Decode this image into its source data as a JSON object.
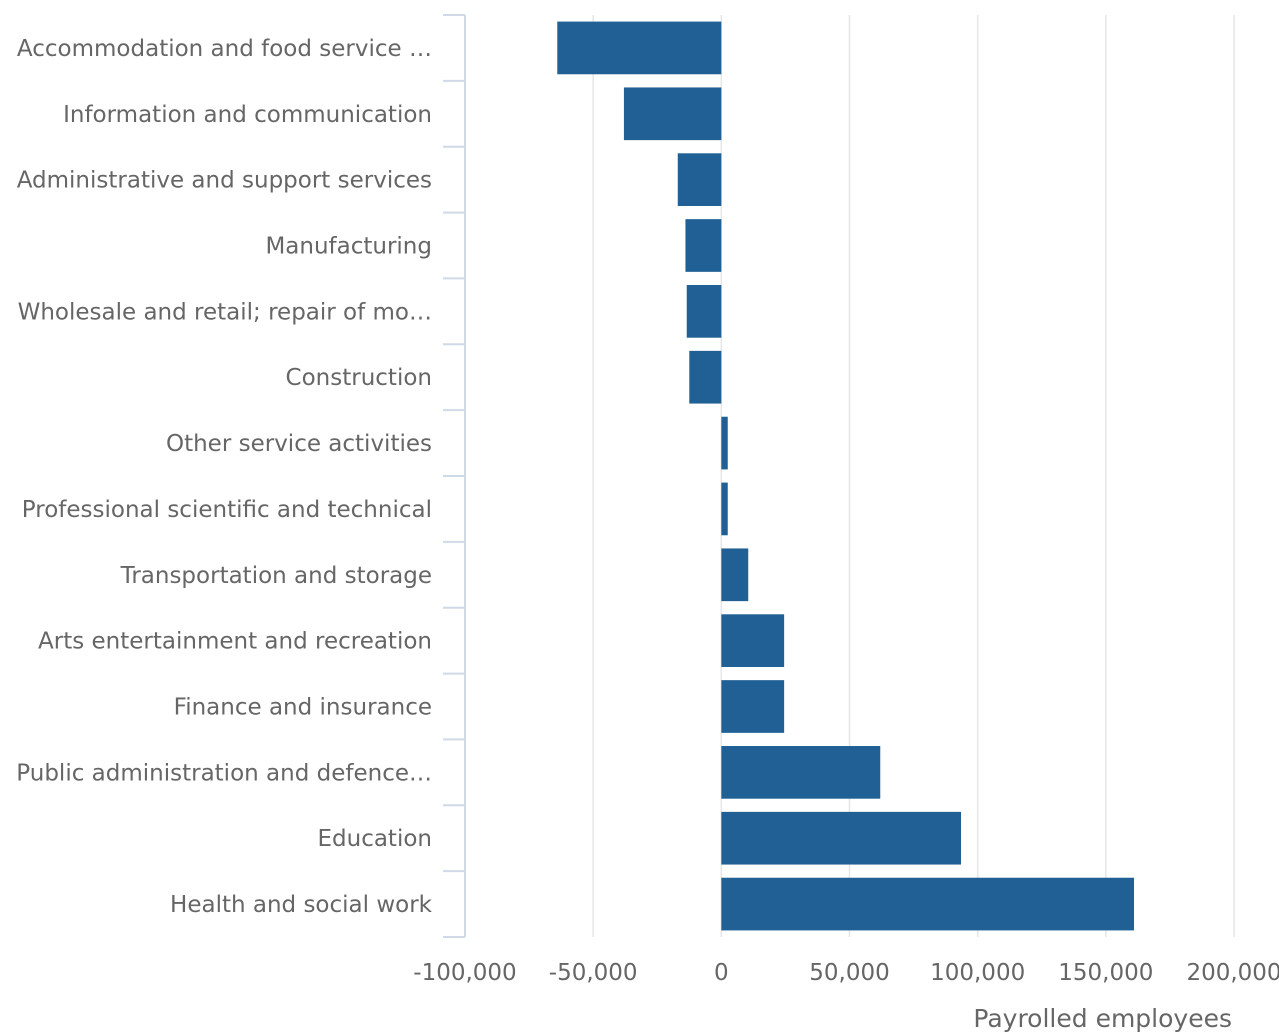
{
  "chart_data": {
    "type": "bar",
    "orientation": "horizontal",
    "title": "",
    "xlabel": "Payrolled employees",
    "ylabel": "",
    "categories": [
      "Accommodation and food service …",
      "Information and communication",
      "Administrative and support services",
      "Manufacturing",
      "Wholesale and retail; repair of mo…",
      "Construction",
      "Other service activities",
      "Professional scientific and technical",
      "Transportation and storage",
      "Arts entertainment and recreation",
      "Finance and insurance",
      "Public administration and defence…",
      "Education",
      "Health and social work"
    ],
    "values": [
      -64000,
      -38000,
      -17000,
      -14000,
      -13500,
      -12500,
      2500,
      2500,
      10500,
      24500,
      24500,
      62000,
      93500,
      161000
    ],
    "xlim": [
      -100000,
      200000
    ],
    "xticks": [
      -100000,
      -50000,
      0,
      50000,
      100000,
      150000,
      200000
    ],
    "xtick_labels": [
      "-100,000",
      "-50,000",
      "0",
      "50,000",
      "100,000",
      "150,000",
      "200,000"
    ],
    "grid": "vertical",
    "legend": "none",
    "colors": {
      "bar": "#206095",
      "grid": "#e6e6e6",
      "axis": "#d0d9e6",
      "text": "#666666"
    }
  }
}
